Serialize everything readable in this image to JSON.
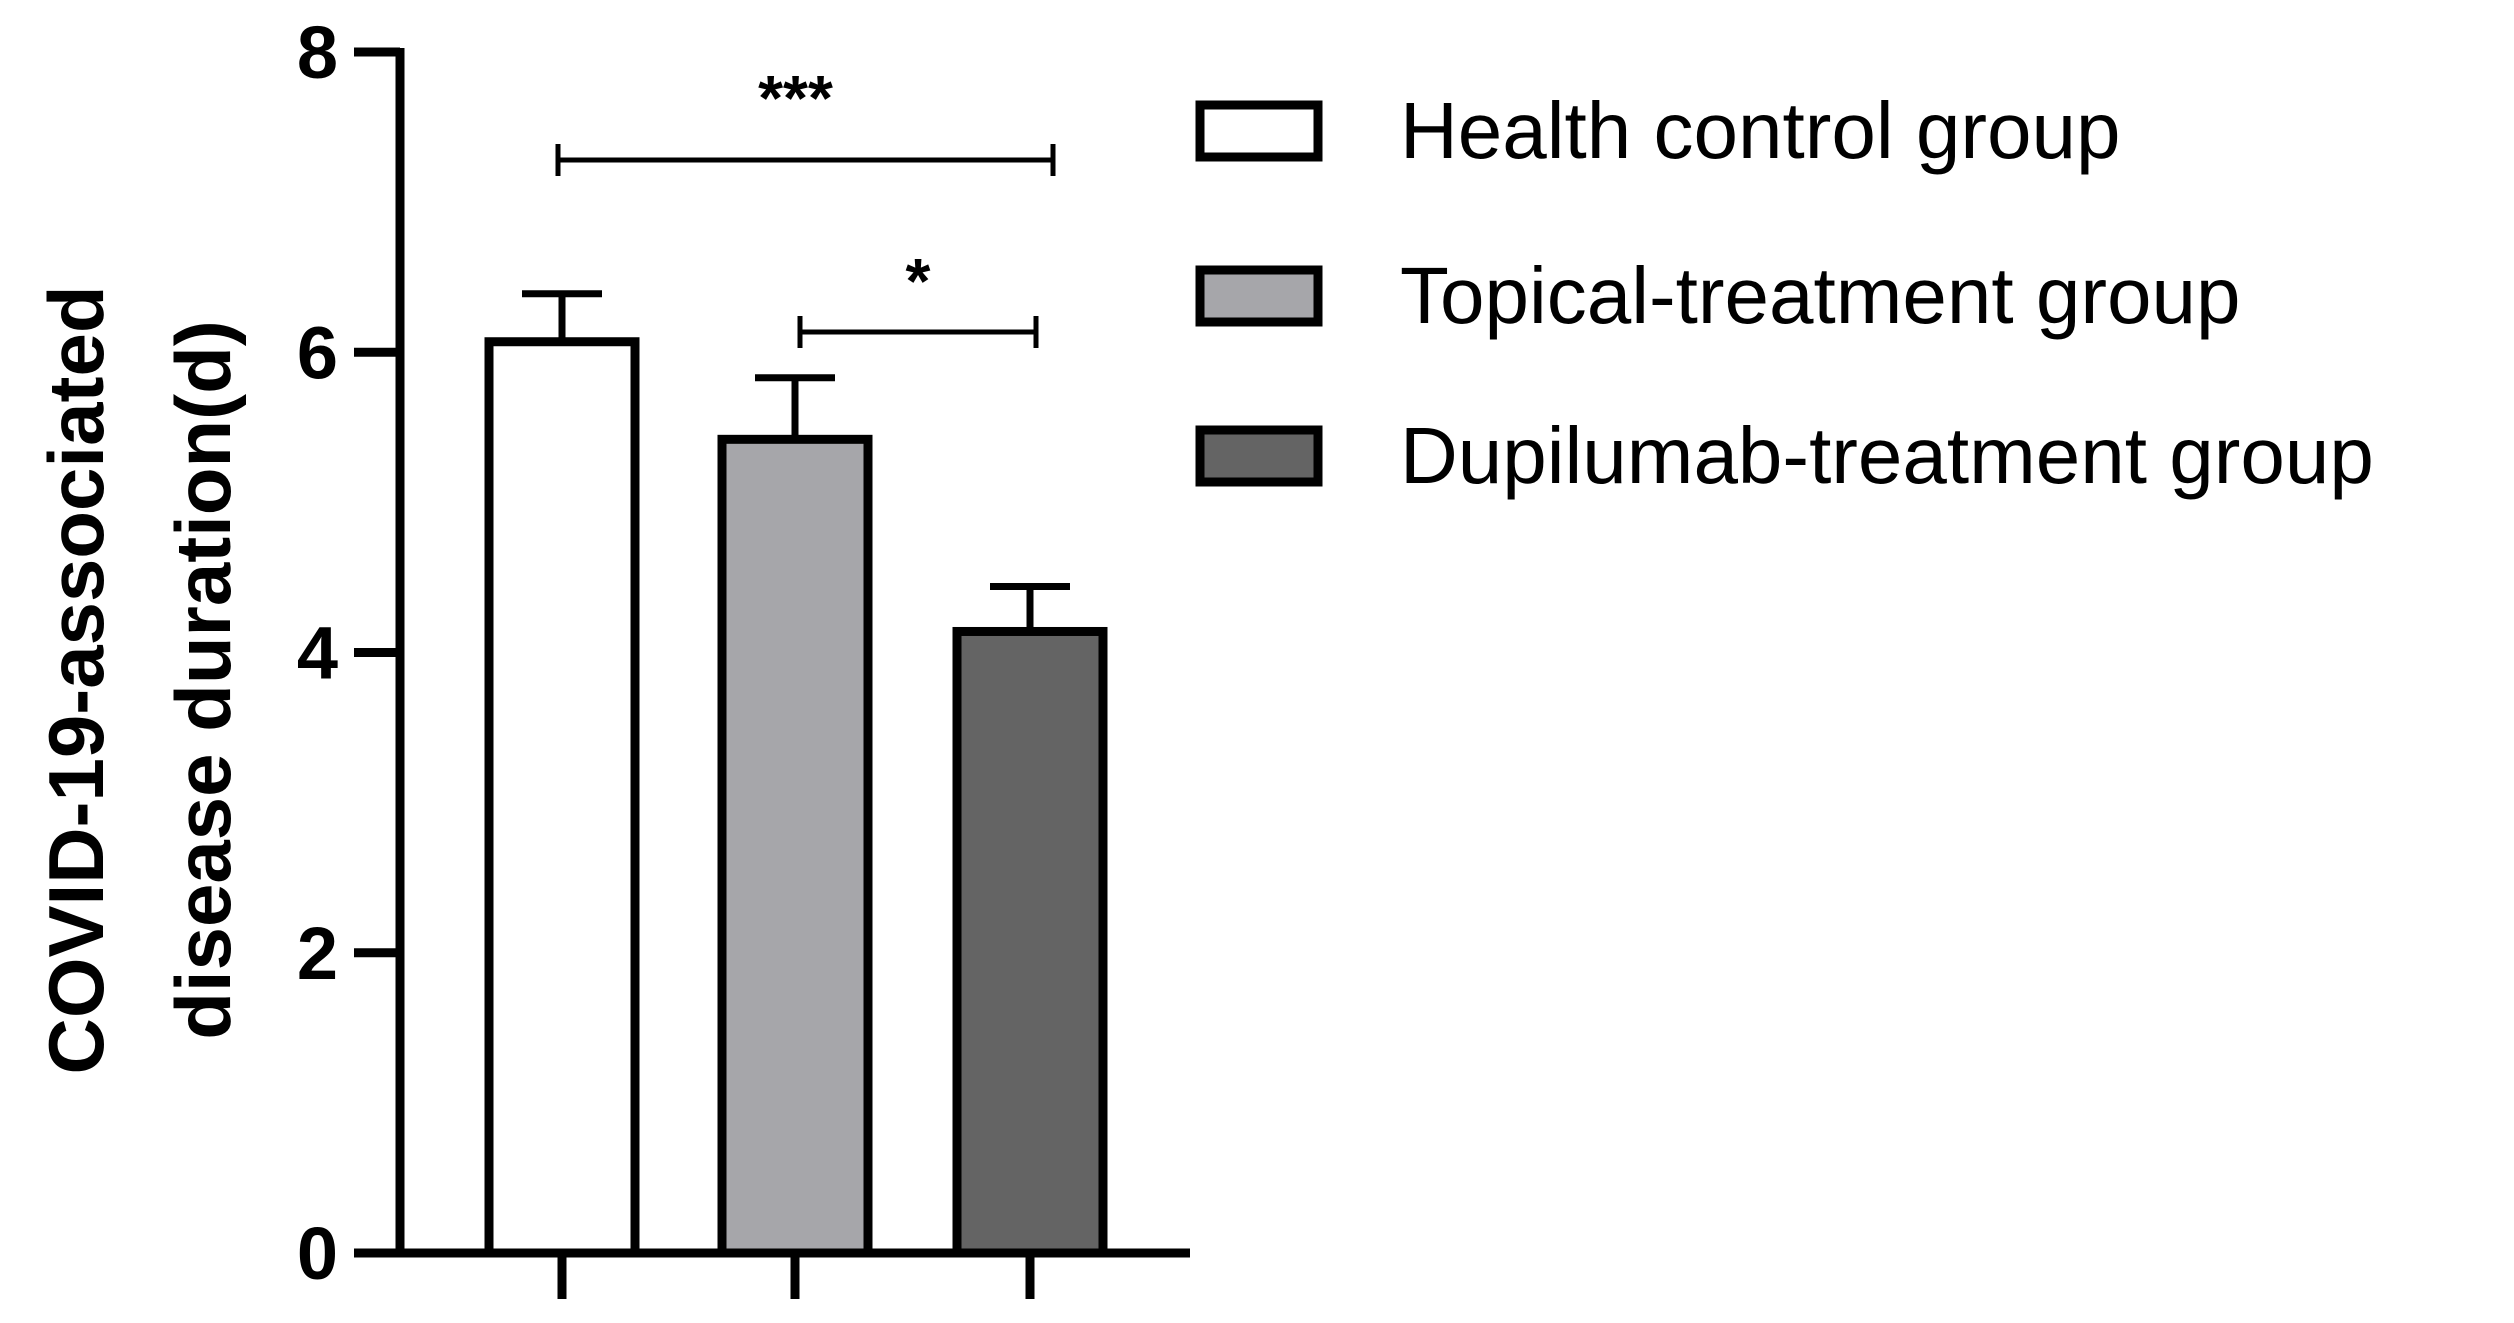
{
  "chart_data": {
    "type": "bar",
    "title": "",
    "xlabel": "",
    "ylabel_lines": [
      "COVID-19-associated",
      "disease duration(d)"
    ],
    "ylim": [
      0,
      8
    ],
    "yticks": [
      0,
      2,
      4,
      6,
      8
    ],
    "grid": false,
    "legend_position": "right",
    "series": [
      {
        "name": "Health control group",
        "value": 6.07,
        "error": 0.32,
        "color": "#ffffff"
      },
      {
        "name": "Topical-treatment group",
        "value": 5.42,
        "error": 0.41,
        "color": "#a6a6aa"
      },
      {
        "name": "Dupilumab-treatment group",
        "value": 4.14,
        "error": 0.3,
        "color": "#646464"
      }
    ],
    "significance": [
      {
        "from": 0,
        "to": 2,
        "label": "***"
      },
      {
        "from": 1,
        "to": 2,
        "label": "*"
      }
    ]
  }
}
